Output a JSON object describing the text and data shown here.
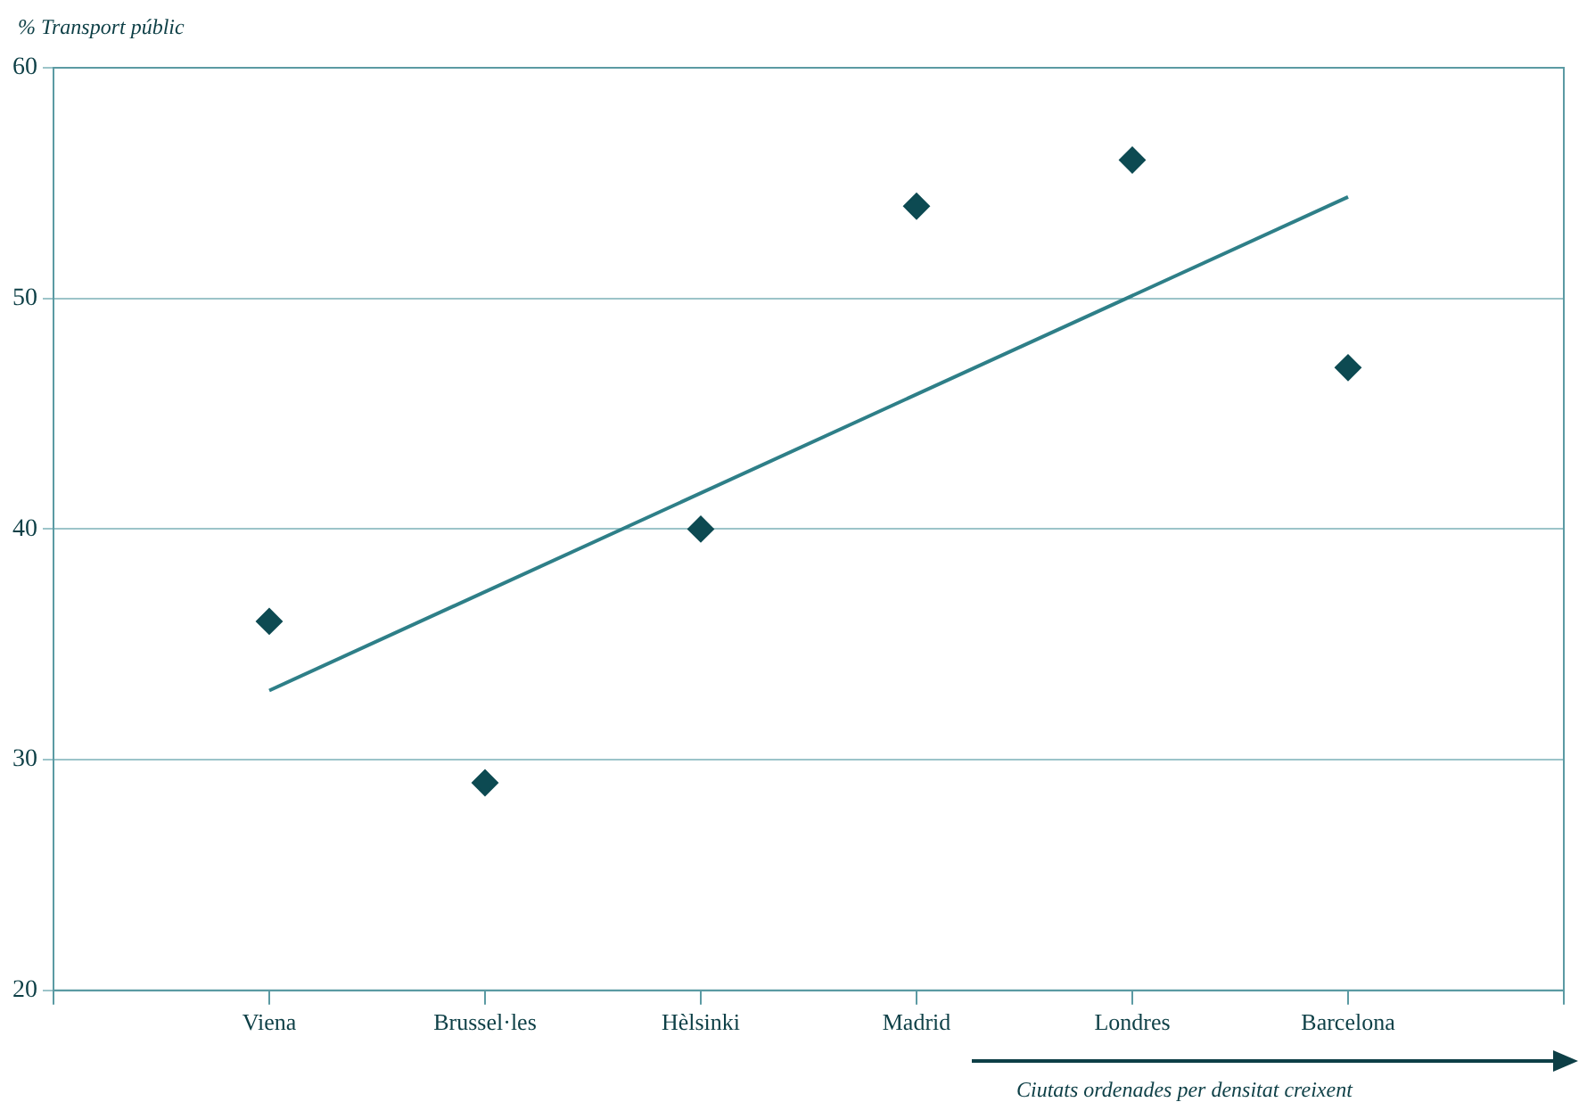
{
  "chart_data": {
    "type": "scatter",
    "ylabel": "% Transport públic",
    "xlabel": "Ciutats ordenades per densitat creixent",
    "categories": [
      null,
      "Viena",
      "Brussel·les",
      "Hèlsinki",
      "Madrid",
      "Londres",
      "Barcelona",
      null
    ],
    "series": [
      {
        "type": "scatter",
        "color": "#0d4a52",
        "marker": "diamond",
        "values": [
          null,
          36,
          29,
          40,
          54,
          56,
          47,
          null
        ]
      },
      {
        "type": "line",
        "color": "#2e7f88",
        "values": [
          null,
          33,
          null,
          null,
          null,
          null,
          54.4,
          null
        ]
      }
    ],
    "ylim": [
      20,
      60
    ],
    "yticks": [
      20,
      30,
      40,
      50,
      60
    ],
    "grid": "y",
    "legend": false
  }
}
